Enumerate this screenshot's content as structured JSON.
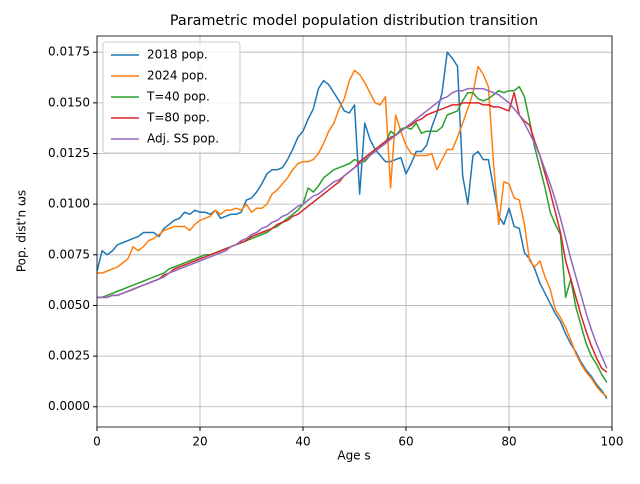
{
  "chart_data": {
    "type": "line",
    "title": "Parametric model population distribution transition",
    "xlabel": "Age s",
    "ylabel": "Pop. dist'n ωs",
    "x": [
      0,
      1,
      2,
      3,
      4,
      5,
      6,
      7,
      8,
      9,
      10,
      11,
      12,
      13,
      14,
      15,
      16,
      17,
      18,
      19,
      20,
      21,
      22,
      23,
      24,
      25,
      26,
      27,
      28,
      29,
      30,
      31,
      32,
      33,
      34,
      35,
      36,
      37,
      38,
      39,
      40,
      41,
      42,
      43,
      44,
      45,
      46,
      47,
      48,
      49,
      50,
      51,
      52,
      53,
      54,
      55,
      56,
      57,
      58,
      59,
      60,
      61,
      62,
      63,
      64,
      65,
      66,
      67,
      68,
      69,
      70,
      71,
      72,
      73,
      74,
      75,
      76,
      77,
      78,
      79,
      80,
      81,
      82,
      83,
      84,
      85,
      86,
      87,
      88,
      89,
      90,
      91,
      92,
      93,
      94,
      95,
      96,
      97,
      98,
      99
    ],
    "series": [
      {
        "name": "2018 pop.",
        "color": "#1f77b4",
        "values": [
          0.0067,
          0.0077,
          0.0075,
          0.0077,
          0.008,
          0.0081,
          0.0082,
          0.0083,
          0.0084,
          0.0086,
          0.0086,
          0.0086,
          0.0084,
          0.0088,
          0.009,
          0.0092,
          0.0093,
          0.0096,
          0.0095,
          0.0097,
          0.0096,
          0.0096,
          0.0095,
          0.0097,
          0.0093,
          0.0094,
          0.0095,
          0.0095,
          0.0096,
          0.0102,
          0.0103,
          0.0106,
          0.011,
          0.0115,
          0.0117,
          0.0117,
          0.0118,
          0.0122,
          0.0127,
          0.0133,
          0.0136,
          0.0142,
          0.0147,
          0.0157,
          0.0161,
          0.0159,
          0.0155,
          0.0151,
          0.0146,
          0.0145,
          0.0149,
          0.0105,
          0.014,
          0.0132,
          0.0127,
          0.0124,
          0.0121,
          0.0121,
          0.0122,
          0.0123,
          0.0115,
          0.012,
          0.0126,
          0.0126,
          0.0129,
          0.0138,
          0.0145,
          0.0155,
          0.0175,
          0.0172,
          0.0168,
          0.0114,
          0.01,
          0.0124,
          0.0126,
          0.0122,
          0.0122,
          0.0108,
          0.0094,
          0.009,
          0.0098,
          0.0089,
          0.0088,
          0.0076,
          0.0073,
          0.0068,
          0.0061,
          0.0056,
          0.0051,
          0.0046,
          0.0042,
          0.0036,
          0.0031,
          0.0027,
          0.0022,
          0.0018,
          0.0015,
          0.0011,
          0.0008,
          0.0004
        ]
      },
      {
        "name": "2024 pop.",
        "color": "#ff7f0e",
        "values": [
          0.0066,
          0.0066,
          0.0067,
          0.0068,
          0.0069,
          0.0071,
          0.0073,
          0.0079,
          0.0077,
          0.0079,
          0.0082,
          0.0083,
          0.0085,
          0.0087,
          0.0088,
          0.0089,
          0.0089,
          0.0089,
          0.0087,
          0.009,
          0.0092,
          0.0093,
          0.0094,
          0.0097,
          0.0095,
          0.0097,
          0.0097,
          0.0098,
          0.0097,
          0.01,
          0.0096,
          0.0098,
          0.0098,
          0.01,
          0.0105,
          0.0107,
          0.011,
          0.0113,
          0.0117,
          0.012,
          0.0121,
          0.0121,
          0.0122,
          0.0125,
          0.013,
          0.0136,
          0.014,
          0.0147,
          0.0152,
          0.0161,
          0.0166,
          0.0164,
          0.016,
          0.0155,
          0.015,
          0.0149,
          0.0153,
          0.0108,
          0.0144,
          0.0136,
          0.0129,
          0.0125,
          0.0124,
          0.0124,
          0.0124,
          0.0125,
          0.0117,
          0.0122,
          0.0127,
          0.0127,
          0.0133,
          0.014,
          0.0147,
          0.0155,
          0.0168,
          0.0164,
          0.0158,
          0.012,
          0.009,
          0.0111,
          0.011,
          0.0103,
          0.0102,
          0.009,
          0.0072,
          0.0069,
          0.0072,
          0.0064,
          0.0058,
          0.0048,
          0.0044,
          0.0039,
          0.0033,
          0.0026,
          0.0021,
          0.0017,
          0.0014,
          0.001,
          0.0007,
          0.0005
        ]
      },
      {
        "name": "T=40 pop.",
        "color": "#2ca02c",
        "values": [
          0.0054,
          0.0054,
          0.0055,
          0.0056,
          0.0057,
          0.0058,
          0.0059,
          0.006,
          0.0061,
          0.0062,
          0.0063,
          0.0064,
          0.0065,
          0.0066,
          0.0068,
          0.0069,
          0.007,
          0.0071,
          0.0072,
          0.0073,
          0.0074,
          0.0075,
          0.0075,
          0.0076,
          0.0077,
          0.0078,
          0.0079,
          0.008,
          0.0081,
          0.0082,
          0.0083,
          0.0084,
          0.0085,
          0.0086,
          0.0088,
          0.0089,
          0.0091,
          0.0093,
          0.0095,
          0.0097,
          0.01,
          0.0108,
          0.0106,
          0.0109,
          0.0113,
          0.0115,
          0.0117,
          0.0118,
          0.0119,
          0.012,
          0.0122,
          0.0121,
          0.0121,
          0.0124,
          0.0126,
          0.0128,
          0.013,
          0.0136,
          0.0134,
          0.0137,
          0.0138,
          0.0137,
          0.014,
          0.0135,
          0.0136,
          0.0136,
          0.0136,
          0.0138,
          0.0144,
          0.0145,
          0.0146,
          0.0151,
          0.0155,
          0.0155,
          0.0152,
          0.0151,
          0.0152,
          0.0154,
          0.0156,
          0.0155,
          0.0156,
          0.0156,
          0.0158,
          0.0153,
          0.0141,
          0.0128,
          0.0118,
          0.0108,
          0.0096,
          0.009,
          0.0085,
          0.0054,
          0.0063,
          0.0049,
          0.004,
          0.0031,
          0.0025,
          0.0021,
          0.0016,
          0.0012
        ]
      },
      {
        "name": "T=80 pop.",
        "color": "#d62728",
        "values": [
          0.0054,
          0.0054,
          0.0054,
          0.0055,
          0.0055,
          0.0056,
          0.0057,
          0.0058,
          0.0059,
          0.006,
          0.0061,
          0.0062,
          0.0063,
          0.0065,
          0.0066,
          0.0068,
          0.0069,
          0.007,
          0.0071,
          0.0072,
          0.0073,
          0.0074,
          0.0075,
          0.0076,
          0.0077,
          0.0078,
          0.0079,
          0.008,
          0.0081,
          0.0082,
          0.0084,
          0.0085,
          0.0086,
          0.0087,
          0.0088,
          0.009,
          0.0091,
          0.0092,
          0.0094,
          0.0095,
          0.0097,
          0.0099,
          0.0101,
          0.0103,
          0.0105,
          0.0107,
          0.0109,
          0.0111,
          0.0114,
          0.0116,
          0.0118,
          0.0121,
          0.0123,
          0.0125,
          0.0127,
          0.0129,
          0.0131,
          0.0133,
          0.0134,
          0.0136,
          0.0138,
          0.0139,
          0.0141,
          0.0142,
          0.0144,
          0.0145,
          0.0146,
          0.0147,
          0.0148,
          0.0149,
          0.0149,
          0.015,
          0.015,
          0.015,
          0.015,
          0.0149,
          0.0149,
          0.0148,
          0.0148,
          0.0147,
          0.0146,
          0.0155,
          0.0144,
          0.0141,
          0.0139,
          0.0131,
          0.0124,
          0.0115,
          0.0106,
          0.0096,
          0.0086,
          0.0072,
          0.0063,
          0.0054,
          0.0045,
          0.0037,
          0.003,
          0.0024,
          0.0019,
          0.0017
        ]
      },
      {
        "name": "Adj. SS pop.",
        "color": "#9467bd",
        "values": [
          0.0054,
          0.0054,
          0.0054,
          0.0055,
          0.0055,
          0.0056,
          0.0057,
          0.0058,
          0.0059,
          0.006,
          0.0061,
          0.0062,
          0.0063,
          0.0064,
          0.0066,
          0.0067,
          0.0068,
          0.0069,
          0.007,
          0.0071,
          0.0072,
          0.0073,
          0.0074,
          0.0075,
          0.0076,
          0.0077,
          0.0079,
          0.008,
          0.0082,
          0.0083,
          0.0085,
          0.0086,
          0.0088,
          0.0089,
          0.0091,
          0.0092,
          0.0094,
          0.0095,
          0.0097,
          0.0099,
          0.01,
          0.0102,
          0.0104,
          0.0105,
          0.0107,
          0.0109,
          0.0111,
          0.0112,
          0.0114,
          0.0116,
          0.0118,
          0.012,
          0.0122,
          0.0124,
          0.0126,
          0.0128,
          0.013,
          0.0132,
          0.0134,
          0.0136,
          0.0138,
          0.014,
          0.0142,
          0.0144,
          0.0146,
          0.0148,
          0.015,
          0.0152,
          0.0153,
          0.0155,
          0.0156,
          0.0156,
          0.0157,
          0.0157,
          0.0157,
          0.0157,
          0.0156,
          0.0155,
          0.0154,
          0.0152,
          0.015,
          0.0147,
          0.0144,
          0.014,
          0.0135,
          0.013,
          0.0124,
          0.0117,
          0.011,
          0.0102,
          0.0093,
          0.0083,
          0.0073,
          0.0064,
          0.0055,
          0.0046,
          0.0038,
          0.0031,
          0.0025,
          0.0019
        ]
      }
    ],
    "xlim": [
      0,
      100
    ],
    "xticks": [
      0,
      20,
      40,
      60,
      80,
      100
    ],
    "ylim": [
      -0.001,
      0.0183
    ],
    "yticks": [
      {
        "value": 0,
        "label": "0.0000"
      },
      {
        "value": 0.0025,
        "label": "0.0025"
      },
      {
        "value": 0.005,
        "label": "0.0050"
      },
      {
        "value": 0.0075,
        "label": "0.0075"
      },
      {
        "value": 0.01,
        "label": "0.0100"
      },
      {
        "value": 0.0125,
        "label": "0.0125"
      },
      {
        "value": 0.015,
        "label": "0.0150"
      },
      {
        "value": 0.0175,
        "label": "0.0175"
      }
    ],
    "grid": true,
    "legend": "upper-left"
  }
}
